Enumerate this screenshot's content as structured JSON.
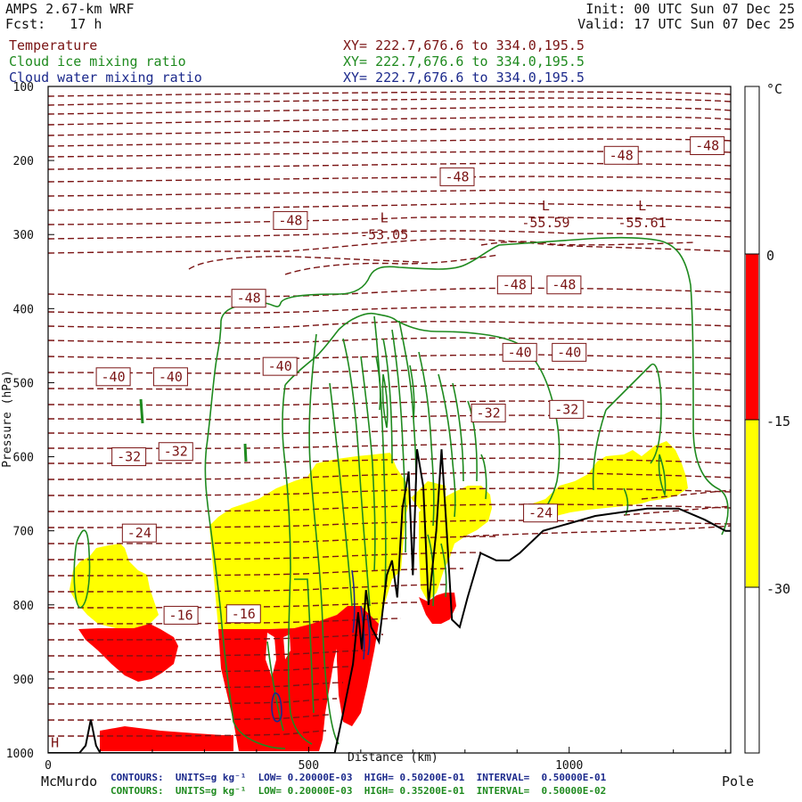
{
  "header": {
    "model": "AMPS 2.67-km WRF",
    "forecast": "Fcst:   17 h",
    "init": "Init: 00 UTC Sun 07 Dec 25",
    "valid": "Valid: 17 UTC Sun 07 Dec 25",
    "fields": [
      {
        "label": "Temperature",
        "xy": "XY= 222.7,676.6 to 334.0,195.5",
        "color": "#7a1414"
      },
      {
        "label": "Cloud ice mixing ratio",
        "xy": "XY= 222.7,676.6 to 334.0,195.5",
        "color": "#1f8a1f"
      },
      {
        "label": "Cloud water mixing ratio",
        "xy": "XY= 222.7,676.6 to 334.0,195.5",
        "color": "#1c2a8c"
      }
    ]
  },
  "footer": {
    "left_label": "McMurdo",
    "right_label": "Pole",
    "xlabel_overlap": "Distance (km)",
    "water_contours": "CONTOURS:  UNITS=g kg⁻¹  LOW= 0.20000E-03  HIGH= 0.50200E-01  INTERVAL=  0.50000E-01",
    "ice_contours": "CONTOURS:  UNITS=g kg⁻¹  LOW= 0.20000E-03  HIGH= 0.35200E-01  INTERVAL=  0.50000E-02"
  },
  "colorbar": {
    "unit": "°C",
    "ticks": [
      "0",
      "-15",
      "-30"
    ],
    "bands": [
      {
        "from": -30,
        "to": -15,
        "color": "#ffff00"
      },
      {
        "from": -15,
        "to": 0,
        "color": "#ff0000"
      }
    ]
  },
  "chart_data": {
    "type": "cross-section contour",
    "xlabel": "Distance (km)",
    "ylabel": "Pressure (hPa)",
    "xlim": [
      0,
      1310
    ],
    "ylim": [
      1000,
      100
    ],
    "x_ticks": [
      0,
      500,
      1000
    ],
    "y_ticks": [
      100,
      200,
      300,
      400,
      500,
      600,
      700,
      800,
      900,
      1000
    ],
    "temperature_labels": [
      {
        "text": "-48",
        "x": 1265,
        "p": 180
      },
      {
        "text": "-48",
        "x": 1100,
        "p": 193
      },
      {
        "text": "-48",
        "x": 785,
        "p": 222
      },
      {
        "text": "-48",
        "x": 465,
        "p": 281
      },
      {
        "text": "-48",
        "x": 385,
        "p": 386
      },
      {
        "text": "-48",
        "x": 895,
        "p": 368
      },
      {
        "text": "-48",
        "x": 990,
        "p": 368
      },
      {
        "text": "-40",
        "x": 445,
        "p": 478
      },
      {
        "text": "-40",
        "x": 125,
        "p": 492
      },
      {
        "text": "-40",
        "x": 235,
        "p": 492
      },
      {
        "text": "-40",
        "x": 905,
        "p": 459
      },
      {
        "text": "-40",
        "x": 1000,
        "p": 459
      },
      {
        "text": "-32",
        "x": 155,
        "p": 600
      },
      {
        "text": "-32",
        "x": 245,
        "p": 593
      },
      {
        "text": "-32",
        "x": 845,
        "p": 541
      },
      {
        "text": "-32",
        "x": 995,
        "p": 536
      },
      {
        "text": "-24",
        "x": 175,
        "p": 703
      },
      {
        "text": "-24",
        "x": 945,
        "p": 676
      },
      {
        "text": "-16",
        "x": 255,
        "p": 814
      },
      {
        "text": "-16",
        "x": 375,
        "p": 812
      }
    ],
    "temperature_minima": [
      {
        "label": "L",
        "value": "-53.05",
        "x": 645,
        "p": 293
      },
      {
        "label": "L",
        "value": "-55.59",
        "x": 955,
        "p": 277
      },
      {
        "label": "L",
        "value": "-55.61",
        "x": 1140,
        "p": 277
      }
    ],
    "temperature_maxima": [
      {
        "label": "H",
        "x": 13,
        "p": 986
      }
    ],
    "terrain_surface_pressure": [
      [
        0,
        1000
      ],
      [
        60,
        1000
      ],
      [
        72,
        990
      ],
      [
        82,
        955
      ],
      [
        92,
        990
      ],
      [
        100,
        1000
      ],
      [
        550,
        1000
      ],
      [
        565,
        950
      ],
      [
        585,
        880
      ],
      [
        595,
        810
      ],
      [
        602,
        860
      ],
      [
        610,
        780
      ],
      [
        620,
        830
      ],
      [
        635,
        850
      ],
      [
        650,
        760
      ],
      [
        660,
        740
      ],
      [
        670,
        790
      ],
      [
        680,
        670
      ],
      [
        692,
        620
      ],
      [
        700,
        760
      ],
      [
        708,
        590
      ],
      [
        720,
        640
      ],
      [
        730,
        800
      ],
      [
        745,
        700
      ],
      [
        755,
        590
      ],
      [
        765,
        700
      ],
      [
        775,
        820
      ],
      [
        790,
        830
      ],
      [
        805,
        790
      ],
      [
        830,
        730
      ],
      [
        860,
        740
      ],
      [
        885,
        740
      ],
      [
        905,
        730
      ],
      [
        950,
        700
      ],
      [
        1050,
        680
      ],
      [
        1150,
        670
      ],
      [
        1210,
        670
      ],
      [
        1260,
        685
      ],
      [
        1300,
        700
      ],
      [
        1310,
        700
      ]
    ]
  }
}
